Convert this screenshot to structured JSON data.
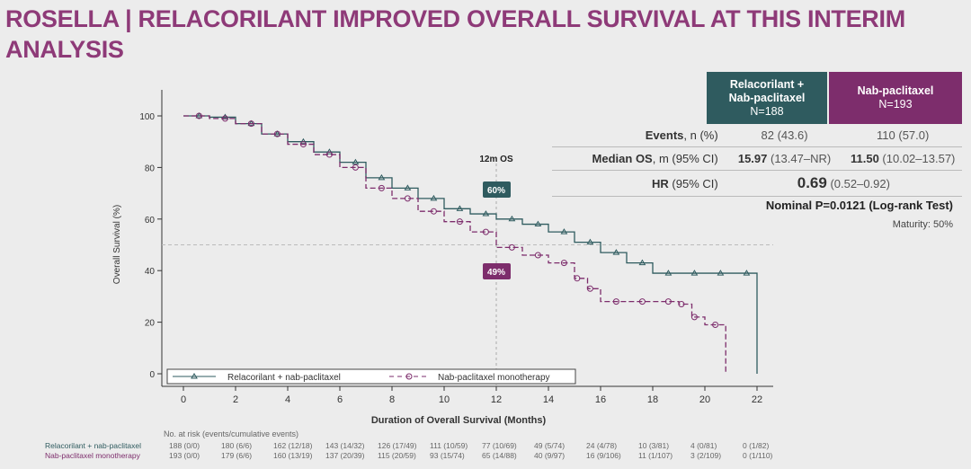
{
  "title": "ROSELLA | RELACORILANT IMPROVED OVERALL SURVIVAL AT THIS INTERIM ANALYSIS",
  "colors": {
    "relacorilant": "#2f5b5f",
    "nab": "#7d2d6c",
    "title": "#8e3a78"
  },
  "table": {
    "arm1_header": [
      "Relacorilant +",
      "Nab-paclitaxel",
      "N=188"
    ],
    "arm2_header": [
      "Nab-paclitaxel",
      "N=193"
    ],
    "events_label_bold": "Events",
    "events_label": ", n (%)",
    "events_arm1": "82 (43.6)",
    "events_arm2": "110 (57.0)",
    "median_label_bold": "Median OS",
    "median_label": ", m (95% CI)",
    "median_arm1_bold": "15.97",
    "median_arm1": " (13.47–NR)",
    "median_arm2_bold": "11.50",
    "median_arm2": " (10.02–13.57)",
    "hr_label_bold": "HR",
    "hr_label": " (95% CI)",
    "hr_value": "0.69",
    "hr_ci": " (0.52–0.92)",
    "p_value": "Nominal P=0.0121 (Log-rank Test)",
    "maturity": "Maturity: 50%"
  },
  "chart_data": {
    "type": "line",
    "xlabel": "Duration of Overall Survival (Months)",
    "ylabel": "Overall Survival (%)",
    "xlim": [
      0,
      22
    ],
    "ylim": [
      0,
      100
    ],
    "xticks": [
      0,
      2,
      4,
      6,
      8,
      10,
      12,
      14,
      16,
      18,
      20,
      22
    ],
    "yticks": [
      0,
      20,
      40,
      60,
      80,
      100
    ],
    "reference_line_y": 50,
    "annotation_line": {
      "x": 12,
      "label": "12m OS"
    },
    "annotations": [
      {
        "label": "60%",
        "series": "Relacorilant + nab-paclitaxel"
      },
      {
        "label": "49%",
        "series": "Nab-paclitaxel monotherapy"
      }
    ],
    "legend_position": "bottom-left",
    "series": [
      {
        "name": "Relacorilant + nab-paclitaxel",
        "style": "solid, triangle censor marks",
        "x": [
          0,
          1,
          2,
          3,
          4,
          5,
          6,
          7,
          8,
          9,
          10,
          11,
          12,
          13,
          14,
          15,
          16,
          17,
          18,
          19,
          20,
          21,
          22,
          22
        ],
        "y": [
          100,
          99.5,
          97,
          93,
          90,
          86,
          82,
          76,
          72,
          68,
          64,
          62,
          60,
          58,
          55,
          51,
          47,
          43,
          39,
          39,
          39,
          39,
          39,
          0
        ]
      },
      {
        "name": "Nab-paclitaxel monotherapy",
        "style": "dashed, circle censor marks",
        "x": [
          0,
          1,
          2,
          3,
          4,
          5,
          6,
          7,
          8,
          9,
          10,
          11,
          12,
          13,
          14,
          15,
          15.5,
          16,
          17,
          18,
          19,
          19.5,
          20,
          20.8,
          20.8
        ],
        "y": [
          100,
          99,
          97,
          93,
          89,
          85,
          80,
          72,
          68,
          63,
          59,
          55,
          49,
          46,
          43,
          37,
          33,
          28,
          28,
          28,
          27,
          22,
          19,
          18,
          0
        ]
      }
    ],
    "at_risk": {
      "title": "No. at risk (events/cumulative events)",
      "rows": [
        {
          "name": "Relacorilant + nab-paclitaxel",
          "values": [
            "188 (0/0)",
            "180 (6/6)",
            "162 (12/18)",
            "143 (14/32)",
            "126 (17/49)",
            "111 (10/59)",
            "77 (10/69)",
            "49 (5/74)",
            "24 (4/78)",
            "10 (3/81)",
            "4 (0/81)",
            "0 (1/82)"
          ]
        },
        {
          "name": "Nab-paclitaxel monotherapy",
          "values": [
            "193 (0/0)",
            "179 (6/6)",
            "160 (13/19)",
            "137 (20/39)",
            "115 (20/59)",
            "93 (15/74)",
            "65 (14/88)",
            "40 (9/97)",
            "16 (9/106)",
            "11 (1/107)",
            "3 (2/109)",
            "0 (1/110)"
          ]
        }
      ]
    }
  }
}
